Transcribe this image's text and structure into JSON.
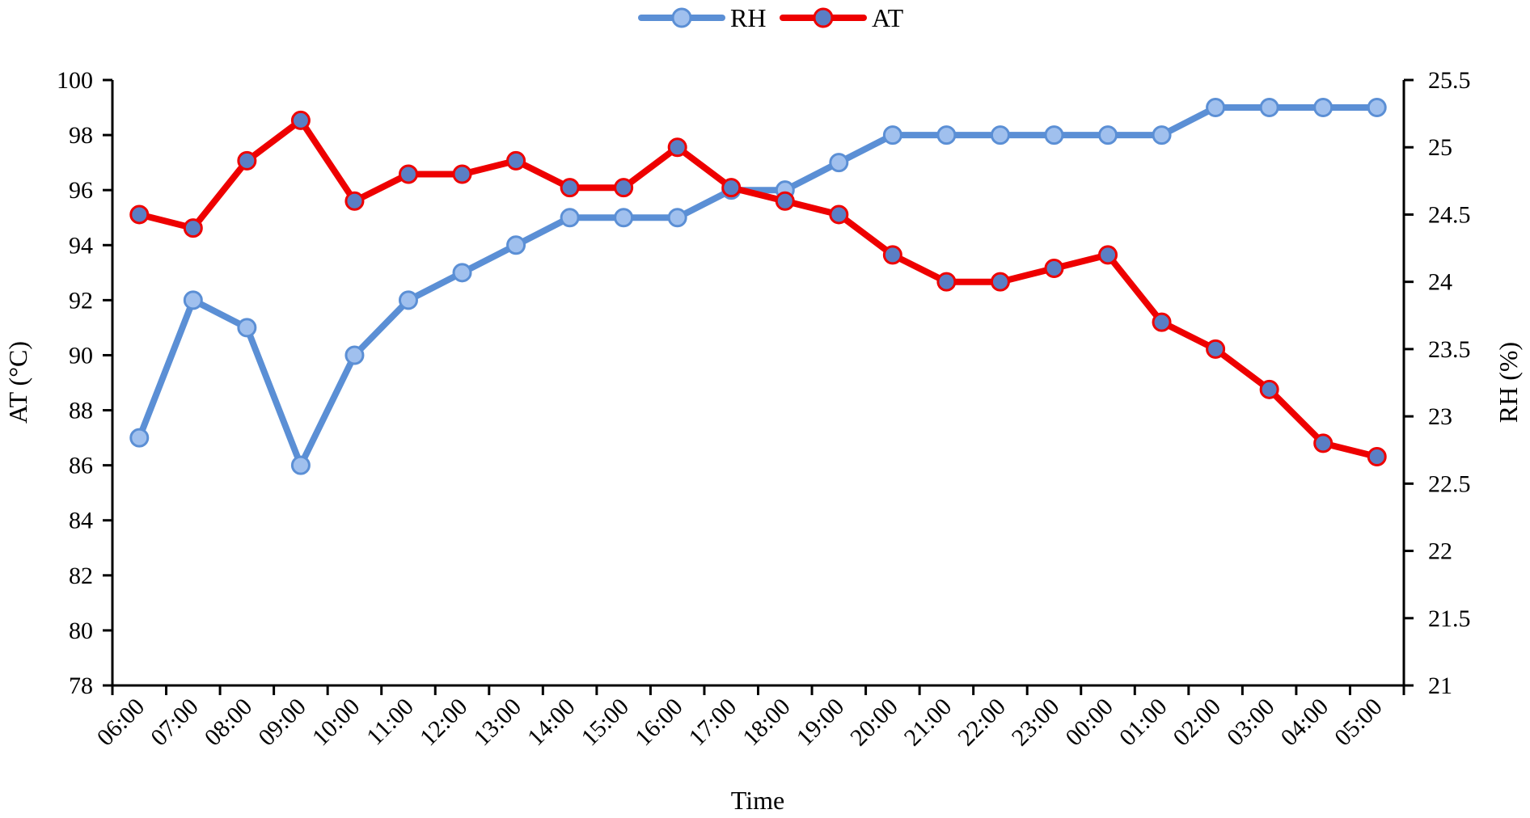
{
  "chart_data": {
    "type": "line",
    "x": [
      "06:00",
      "07:00",
      "08:00",
      "09:00",
      "10:00",
      "11:00",
      "12:00",
      "13:00",
      "14:00",
      "15:00",
      "16:00",
      "17:00",
      "18:00",
      "19:00",
      "20:00",
      "21:00",
      "22:00",
      "23:00",
      "00:00",
      "01:00",
      "02:00",
      "03:00",
      "04:00",
      "05:00"
    ],
    "xlabel": "Time",
    "y_left": {
      "label": "AT (°C)",
      "lim": [
        78,
        100
      ],
      "ticks": [
        "78",
        "80",
        "82",
        "84",
        "86",
        "88",
        "90",
        "92",
        "94",
        "96",
        "98",
        "100"
      ]
    },
    "y_right": {
      "label": "RH (%)",
      "lim": [
        21,
        25.5
      ],
      "ticks": [
        "21",
        "21.5",
        "22",
        "22.5",
        "23",
        "23.5",
        "24",
        "24.5",
        "25",
        "25.5"
      ]
    },
    "grid": false,
    "legend": {
      "placement": "top-center",
      "entries": [
        "RH",
        "AT"
      ]
    },
    "series": [
      {
        "name": "RH",
        "axis": "left",
        "color": "#5b8fd5",
        "marker_fill": "#a0c0ee",
        "values": [
          87,
          92,
          91,
          86,
          90,
          92,
          93,
          94,
          95,
          95,
          95,
          96,
          96,
          97,
          98,
          98,
          98,
          98,
          98,
          98,
          99,
          99,
          99,
          99
        ]
      },
      {
        "name": "AT",
        "axis": "right",
        "color": "#ee0000",
        "marker_fill": "#5a7ec4",
        "values": [
          24.5,
          24.4,
          24.9,
          25.2,
          24.6,
          24.8,
          24.8,
          24.9,
          24.7,
          24.7,
          25.0,
          24.7,
          24.6,
          24.5,
          24.2,
          24.0,
          24.0,
          24.1,
          24.2,
          23.7,
          23.5,
          23.2,
          22.8,
          22.7
        ]
      }
    ]
  }
}
